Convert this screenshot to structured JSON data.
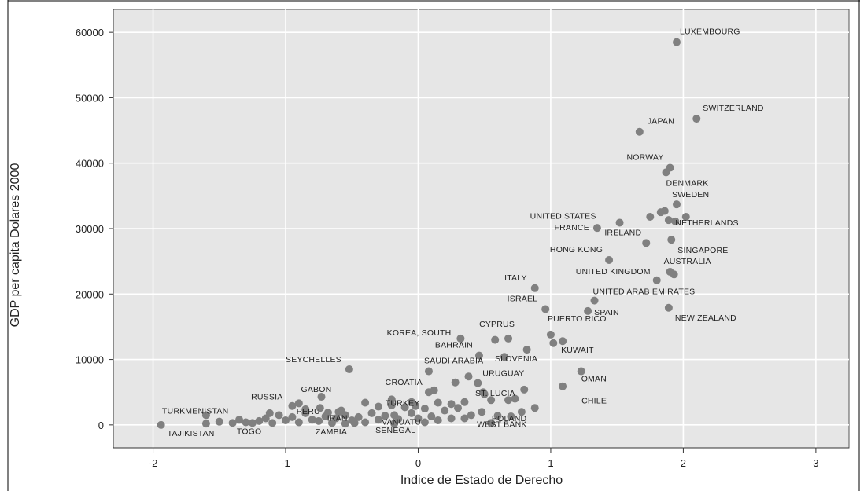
{
  "chart_data": {
    "type": "scatter",
    "xlabel": "Indice de Estado de Derecho",
    "ylabel": "GDP per capita Dolares 2000",
    "xlim": [
      -2.3,
      3.25
    ],
    "ylim": [
      -3500,
      63500
    ],
    "x_ticks": [
      "-2",
      "-1",
      "0",
      "1",
      "2",
      "3"
    ],
    "y_ticks": [
      "0",
      "10000",
      "20000",
      "30000",
      "40000",
      "50000",
      "60000"
    ],
    "x_tick_values": [
      -2,
      -1,
      0,
      1,
      2,
      3
    ],
    "y_tick_values": [
      0,
      10000,
      20000,
      30000,
      40000,
      50000,
      60000
    ],
    "grid": true,
    "background": "#e6e6e6",
    "point_color": "#808080",
    "points": [
      {
        "x": 1.95,
        "y": 58500,
        "label": "LUXEMBOURG"
      },
      {
        "x": 2.1,
        "y": 46800,
        "label": "SWITZERLAND"
      },
      {
        "x": 1.67,
        "y": 44800,
        "label": "JAPAN"
      },
      {
        "x": 1.9,
        "y": 39300,
        "label": "NORWAY"
      },
      {
        "x": 1.87,
        "y": 38600,
        "label": "DENMARK"
      },
      {
        "x": 1.95,
        "y": 33700,
        "label": "SWEDEN"
      },
      {
        "x": 1.52,
        "y": 30900,
        "label": "UNITED STATES"
      },
      {
        "x": 1.35,
        "y": 30100,
        "label": "FRANCE"
      },
      {
        "x": 1.72,
        "y": 27800,
        "label": "IRELAND"
      },
      {
        "x": 1.94,
        "y": 31100,
        "label": "NETHERLANDS"
      },
      {
        "x": 1.91,
        "y": 28300,
        "label": "SINGAPORE"
      },
      {
        "x": 1.44,
        "y": 25200,
        "label": "HONG KONG"
      },
      {
        "x": 1.9,
        "y": 23400,
        "label": "AUSTRALIA"
      },
      {
        "x": 1.8,
        "y": 22100,
        "label": "UNITED KINGDOM"
      },
      {
        "x": 0.88,
        "y": 20900,
        "label": "ITALY"
      },
      {
        "x": 1.33,
        "y": 19000,
        "label": "UNITED ARAB EMIRATES"
      },
      {
        "x": 0.96,
        "y": 17700,
        "label": "ISRAEL"
      },
      {
        "x": 1.28,
        "y": 17400,
        "label": "SPAIN"
      },
      {
        "x": 1.89,
        "y": 17900,
        "label": "NEW ZEALAND"
      },
      {
        "x": 0.68,
        "y": 13200,
        "label": "CYPRUS"
      },
      {
        "x": 1.0,
        "y": 13800,
        "label": "PUERTO RICO"
      },
      {
        "x": 0.32,
        "y": 13200,
        "label": "KOREA, SOUTH"
      },
      {
        "x": 1.09,
        "y": 12800,
        "label": "KUWAIT"
      },
      {
        "x": 0.46,
        "y": 10600,
        "label": "BAHRAIN"
      },
      {
        "x": 0.65,
        "y": 10400,
        "label": "SLOVENIA"
      },
      {
        "x": -0.52,
        "y": 8500,
        "label": "SEYCHELLES"
      },
      {
        "x": 0.08,
        "y": 8200,
        "label": "SAUDI ARABIA"
      },
      {
        "x": 1.23,
        "y": 8200,
        "label": "OMAN"
      },
      {
        "x": 0.45,
        "y": 6400,
        "label": "URUGUAY"
      },
      {
        "x": 1.09,
        "y": 5900,
        "label": "CHILE"
      },
      {
        "x": 0.08,
        "y": 5000,
        "label": "CROATIA"
      },
      {
        "x": 0.49,
        "y": 5000,
        "label": "ST. LUCIA"
      },
      {
        "x": -0.73,
        "y": 4300,
        "label": "GABON"
      },
      {
        "x": -0.2,
        "y": 3900,
        "label": "TURKEY"
      },
      {
        "x": -0.95,
        "y": 2900,
        "label": "RUSSIA"
      },
      {
        "x": -0.74,
        "y": 2600,
        "label": "PERU"
      },
      {
        "x": -0.58,
        "y": 2200,
        "label": "IRAN"
      },
      {
        "x": -0.18,
        "y": 1500,
        "label": "VANUATU"
      },
      {
        "x": 0.78,
        "y": 2000,
        "label": "POLAND"
      },
      {
        "x": -1.6,
        "y": 1500,
        "label": "TURKMENISTAN"
      },
      {
        "x": -1.94,
        "y": 0,
        "label": "TAJIKISTAN"
      },
      {
        "x": -1.25,
        "y": 300,
        "label": "TOGO"
      },
      {
        "x": -0.55,
        "y": 200,
        "label": "ZAMBIA"
      },
      {
        "x": -0.18,
        "y": 200,
        "label": "SENEGAL"
      },
      {
        "x": 0.55,
        "y": 300,
        "label": "WEST BANK"
      },
      {
        "x": 1.86,
        "y": 32700,
        "label": ""
      },
      {
        "x": 1.75,
        "y": 31800,
        "label": ""
      },
      {
        "x": 1.89,
        "y": 31300,
        "label": ""
      },
      {
        "x": 2.02,
        "y": 31800,
        "label": ""
      },
      {
        "x": 1.83,
        "y": 32500,
        "label": ""
      },
      {
        "x": 1.93,
        "y": 23000,
        "label": ""
      },
      {
        "x": 1.02,
        "y": 12500,
        "label": ""
      },
      {
        "x": 0.58,
        "y": 13000,
        "label": ""
      },
      {
        "x": 0.82,
        "y": 11500,
        "label": ""
      },
      {
        "x": 0.28,
        "y": 6500,
        "label": ""
      },
      {
        "x": 0.38,
        "y": 7400,
        "label": ""
      },
      {
        "x": 0.8,
        "y": 5400,
        "label": ""
      },
      {
        "x": 0.73,
        "y": 4000,
        "label": ""
      },
      {
        "x": 0.68,
        "y": 3800,
        "label": ""
      },
      {
        "x": 0.55,
        "y": 3800,
        "label": ""
      },
      {
        "x": 0.35,
        "y": 3500,
        "label": ""
      },
      {
        "x": 0.15,
        "y": 3400,
        "label": ""
      },
      {
        "x": 0.25,
        "y": 3200,
        "label": ""
      },
      {
        "x": 0.3,
        "y": 2600,
        "label": ""
      },
      {
        "x": 0.05,
        "y": 2500,
        "label": ""
      },
      {
        "x": 0.2,
        "y": 2200,
        "label": ""
      },
      {
        "x": 0.1,
        "y": 1300,
        "label": ""
      },
      {
        "x": 0.4,
        "y": 1500,
        "label": ""
      },
      {
        "x": 0.25,
        "y": 1000,
        "label": ""
      },
      {
        "x": 0.15,
        "y": 700,
        "label": ""
      },
      {
        "x": 0.05,
        "y": 400,
        "label": ""
      },
      {
        "x": -0.05,
        "y": 1800,
        "label": ""
      },
      {
        "x": -0.1,
        "y": 2700,
        "label": ""
      },
      {
        "x": -0.05,
        "y": 3500,
        "label": ""
      },
      {
        "x": -0.3,
        "y": 2800,
        "label": ""
      },
      {
        "x": -0.4,
        "y": 3400,
        "label": ""
      },
      {
        "x": -0.35,
        "y": 1800,
        "label": ""
      },
      {
        "x": -0.45,
        "y": 1200,
        "label": ""
      },
      {
        "x": -0.3,
        "y": 800,
        "label": ""
      },
      {
        "x": -0.4,
        "y": 400,
        "label": ""
      },
      {
        "x": -0.5,
        "y": 700,
        "label": ""
      },
      {
        "x": -0.62,
        "y": 1000,
        "label": ""
      },
      {
        "x": -0.65,
        "y": 300,
        "label": ""
      },
      {
        "x": -0.7,
        "y": 1300,
        "label": ""
      },
      {
        "x": -0.8,
        "y": 800,
        "label": ""
      },
      {
        "x": -0.85,
        "y": 1800,
        "label": ""
      },
      {
        "x": -0.9,
        "y": 400,
        "label": ""
      },
      {
        "x": -1.0,
        "y": 700,
        "label": ""
      },
      {
        "x": -1.05,
        "y": 1500,
        "label": ""
      },
      {
        "x": -1.1,
        "y": 300,
        "label": ""
      },
      {
        "x": -1.15,
        "y": 1000,
        "label": ""
      },
      {
        "x": -1.2,
        "y": 600,
        "label": ""
      },
      {
        "x": -1.3,
        "y": 400,
        "label": ""
      },
      {
        "x": -1.4,
        "y": 300,
        "label": ""
      },
      {
        "x": -1.5,
        "y": 500,
        "label": ""
      },
      {
        "x": -1.6,
        "y": 200,
        "label": ""
      },
      {
        "x": -1.35,
        "y": 800,
        "label": ""
      },
      {
        "x": -0.95,
        "y": 1200,
        "label": ""
      },
      {
        "x": -0.75,
        "y": 600,
        "label": ""
      },
      {
        "x": -0.55,
        "y": 1500,
        "label": ""
      },
      {
        "x": -0.6,
        "y": 2000,
        "label": ""
      },
      {
        "x": -0.25,
        "y": 1400,
        "label": ""
      },
      {
        "x": -0.15,
        "y": 900,
        "label": ""
      },
      {
        "x": 0.0,
        "y": 1000,
        "label": ""
      },
      {
        "x": -0.85,
        "y": 2400,
        "label": ""
      },
      {
        "x": -0.9,
        "y": 3300,
        "label": ""
      },
      {
        "x": -0.68,
        "y": 1900,
        "label": ""
      },
      {
        "x": -1.12,
        "y": 1800,
        "label": ""
      },
      {
        "x": -0.48,
        "y": 300,
        "label": ""
      },
      {
        "x": -0.02,
        "y": 2900,
        "label": ""
      },
      {
        "x": 0.35,
        "y": 1000,
        "label": ""
      },
      {
        "x": 0.6,
        "y": 1400,
        "label": ""
      },
      {
        "x": 0.48,
        "y": 2000,
        "label": ""
      },
      {
        "x": 0.7,
        "y": 1300,
        "label": ""
      },
      {
        "x": 0.88,
        "y": 2600,
        "label": ""
      },
      {
        "x": -0.2,
        "y": 3000,
        "label": ""
      },
      {
        "x": 0.12,
        "y": 5300,
        "label": ""
      },
      {
        "x": 0.5,
        "y": 4700,
        "label": ""
      }
    ]
  }
}
